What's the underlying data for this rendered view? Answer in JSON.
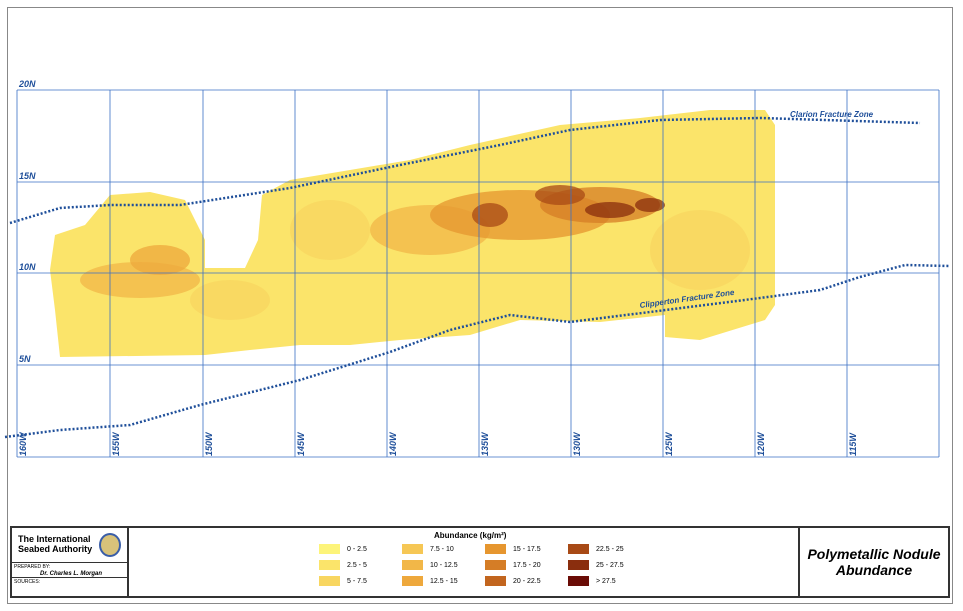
{
  "map": {
    "latitude_labels": [
      "20N",
      "15N",
      "10N",
      "5N"
    ],
    "longitude_labels": [
      "160W",
      "155W",
      "150W",
      "145W",
      "140W",
      "135W",
      "130W",
      "125W",
      "120W",
      "115W"
    ],
    "fracture_zones": [
      {
        "name": "Clarion Fracture Zone"
      },
      {
        "name": "Clipperton Fracture Zone"
      }
    ],
    "colors": {
      "grid": "#3a6fc4",
      "fracture_zone": "#1f4f9a",
      "label": "#1f4f9a"
    }
  },
  "footer": {
    "organization": "The International Seabed Authority",
    "prepared_by_label": "PREPARED BY:",
    "prepared_by": "Dr. Charles L. Morgan",
    "sources_label": "SOURCES:",
    "title": "Polymetallic Nodule Abundance"
  },
  "legend": {
    "title": "Abundance (kg/m²)",
    "items": [
      {
        "label": "0 - 2.5",
        "color": "#fdf47a"
      },
      {
        "label": "2.5 - 5",
        "color": "#fbe46a"
      },
      {
        "label": "5 - 7.5",
        "color": "#f8d660"
      },
      {
        "label": "7.5 - 10",
        "color": "#f6c755"
      },
      {
        "label": "10 - 12.5",
        "color": "#f2b748"
      },
      {
        "label": "12.5 - 15",
        "color": "#eea83c"
      },
      {
        "label": "15 - 17.5",
        "color": "#e6962f"
      },
      {
        "label": "17.5 - 20",
        "color": "#d57d26"
      },
      {
        "label": "20 - 22.5",
        "color": "#c2651e"
      },
      {
        "label": "22.5 - 25",
        "color": "#a84a16"
      },
      {
        "label": "25 - 27.5",
        "color": "#8a2e0e"
      },
      {
        "label": "> 27.5",
        "color": "#6a0c06"
      }
    ]
  }
}
